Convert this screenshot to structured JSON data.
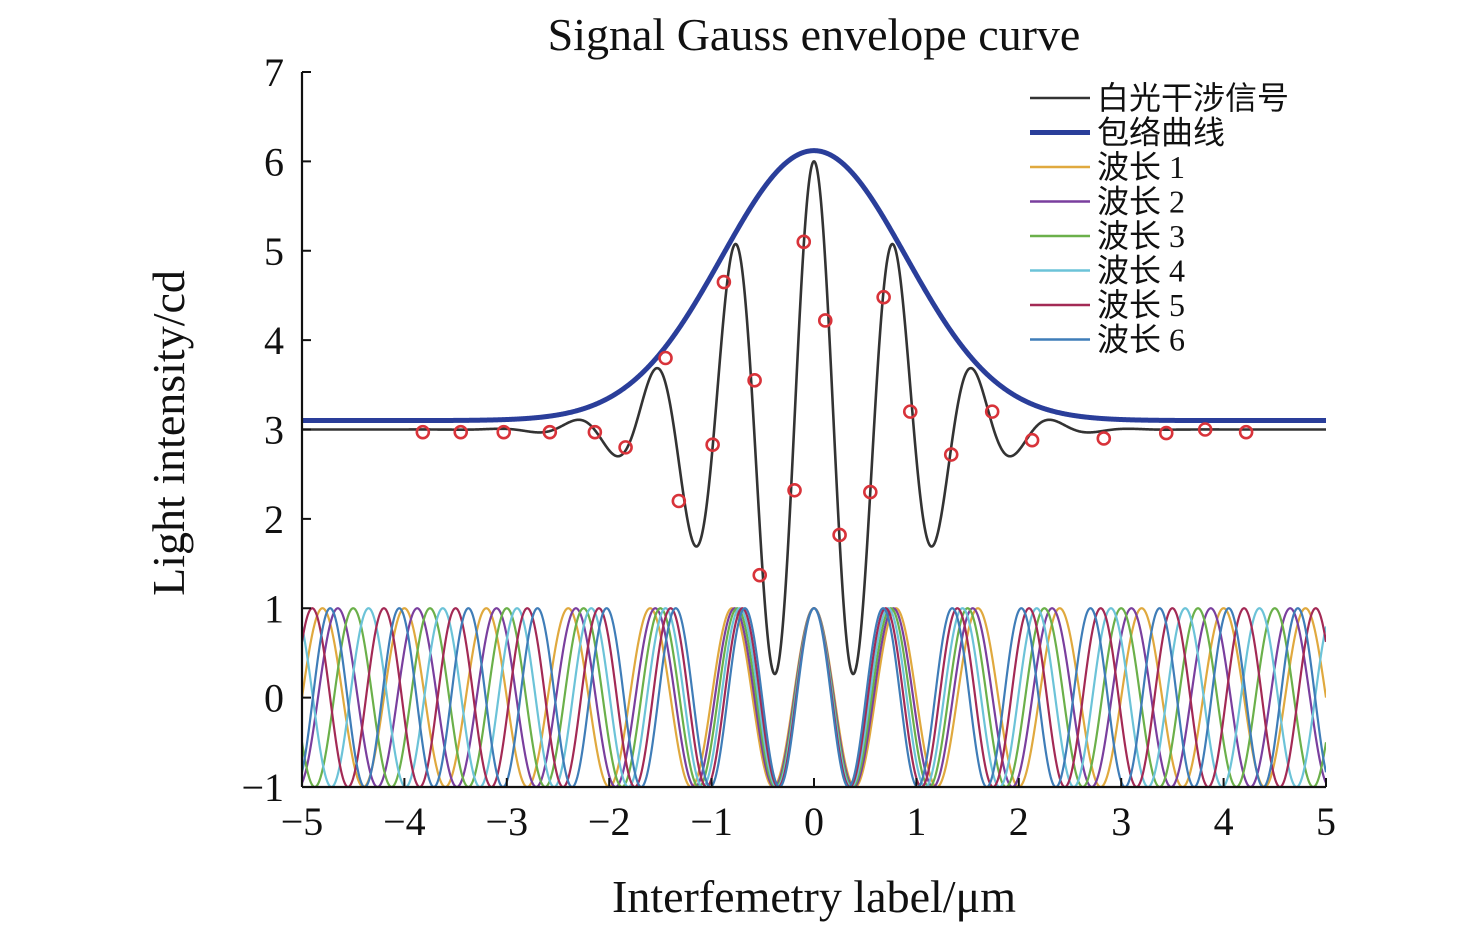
{
  "chart_data": {
    "type": "line",
    "title": "Signal Gauss envelope curve",
    "xlabel": "Interfemetry label/μm",
    "ylabel": "Light intensity/cd",
    "xlim": [
      -5,
      5
    ],
    "ylim": [
      -1,
      7
    ],
    "x_ticks": [
      "−5",
      "−4",
      "−3",
      "−2",
      "−1",
      "0",
      "1",
      "2",
      "3",
      "4",
      "5"
    ],
    "y_ticks": [
      "−1",
      "0",
      "1",
      "2",
      "3",
      "4",
      "5",
      "6",
      "7"
    ],
    "grid": false,
    "legend_position": "top-right",
    "series": [
      {
        "name": "白光干涉信号",
        "color": "#333333",
        "kind": "white-light-interference",
        "baseline": 3,
        "peak": 6,
        "center": 0,
        "period": 0.78,
        "envelope_sigma": 0.9,
        "x": [
          -5.0,
          -4.0,
          -3.0,
          -2.5,
          -2.3,
          -2.1,
          -1.9,
          -1.55,
          -1.2,
          -0.8,
          -0.4,
          0.0,
          0.4,
          0.8,
          1.2,
          1.55,
          1.9,
          2.1,
          2.3,
          2.5,
          3.0,
          4.0,
          5.0
        ],
        "y": [
          3.0,
          3.0,
          3.0,
          2.9,
          3.3,
          3.1,
          2.4,
          4.1,
          1.3,
          5.35,
          0.2,
          6.0,
          0.2,
          5.35,
          1.3,
          4.1,
          2.4,
          3.1,
          3.3,
          2.9,
          3.0,
          3.0,
          3.0
        ]
      },
      {
        "name": "包络曲线",
        "color": "#2a3e9a",
        "kind": "gaussian-envelope",
        "baseline": 3.1,
        "peak": 6.12,
        "center": 0,
        "sigma": 0.9,
        "x": [
          -5.0,
          -3.0,
          -2.0,
          -1.5,
          -1.0,
          -0.5,
          0.0,
          0.5,
          1.0,
          1.5,
          2.0,
          3.0,
          5.0
        ],
        "y": [
          3.1,
          3.15,
          3.45,
          3.9,
          4.7,
          5.5,
          6.12,
          5.5,
          4.7,
          3.9,
          3.45,
          3.15,
          3.1
        ]
      },
      {
        "name": "波长 1",
        "color": "#e0a93e",
        "kind": "cosine",
        "amplitude": 1,
        "wavelength": 0.8,
        "phase_center": 0
      },
      {
        "name": "波长 2",
        "color": "#7a3f9e",
        "kind": "cosine",
        "amplitude": 1,
        "wavelength": 0.775,
        "phase_center": 0
      },
      {
        "name": "波长 3",
        "color": "#6bb04a",
        "kind": "cosine",
        "amplitude": 1,
        "wavelength": 0.75,
        "phase_center": 0
      },
      {
        "name": "波长 4",
        "color": "#6cc3d8",
        "kind": "cosine",
        "amplitude": 1,
        "wavelength": 0.725,
        "phase_center": 0
      },
      {
        "name": "波长 5",
        "color": "#a32a55",
        "kind": "cosine",
        "amplitude": 1,
        "wavelength": 0.7,
        "phase_center": 0
      },
      {
        "name": "波长 6",
        "color": "#3f7db8",
        "kind": "cosine",
        "amplitude": 1,
        "wavelength": 0.675,
        "phase_center": 0
      }
    ],
    "markers": {
      "shape": "circle",
      "color": "#d8333a",
      "points": [
        [
          -3.82,
          2.97
        ],
        [
          -3.45,
          2.97
        ],
        [
          -3.03,
          2.97
        ],
        [
          -2.58,
          2.97
        ],
        [
          -2.14,
          2.97
        ],
        [
          -1.84,
          2.8
        ],
        [
          -1.45,
          3.8
        ],
        [
          -1.32,
          2.2
        ],
        [
          -0.99,
          2.83
        ],
        [
          -0.88,
          4.65
        ],
        [
          -0.58,
          3.55
        ],
        [
          -0.53,
          1.37
        ],
        [
          -0.19,
          2.32
        ],
        [
          -0.1,
          5.1
        ],
        [
          0.25,
          1.82
        ],
        [
          0.11,
          4.22
        ],
        [
          0.55,
          2.3
        ],
        [
          0.68,
          4.48
        ],
        [
          0.94,
          3.2
        ],
        [
          1.34,
          2.72
        ],
        [
          1.74,
          3.2
        ],
        [
          2.13,
          2.88
        ],
        [
          2.83,
          2.9
        ],
        [
          3.44,
          2.96
        ],
        [
          3.82,
          3.0
        ],
        [
          4.22,
          2.97
        ]
      ]
    }
  }
}
